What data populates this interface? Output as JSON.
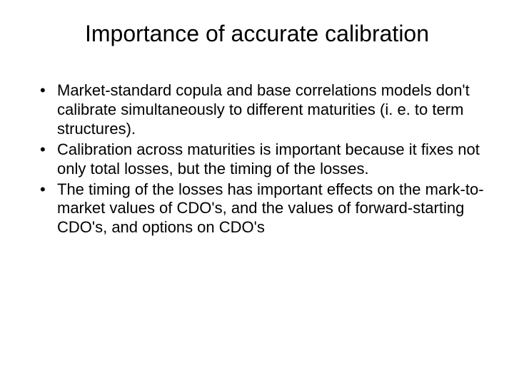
{
  "slide": {
    "title": "Importance of accurate calibration",
    "bullets": [
      "Market-standard copula and base correlations models don't calibrate simultaneously to different maturities (i. e. to term structures).",
      "Calibration across maturities is important because it fixes not only total losses, but the timing of the losses.",
      "The timing of the losses has important effects on the mark-to-market values of CDO's, and the values of forward-starting CDO's, and options on CDO's"
    ],
    "styling": {
      "background_color": "#ffffff",
      "text_color": "#000000",
      "title_fontsize": 32,
      "body_fontsize": 22,
      "font_family": "Arial"
    }
  }
}
